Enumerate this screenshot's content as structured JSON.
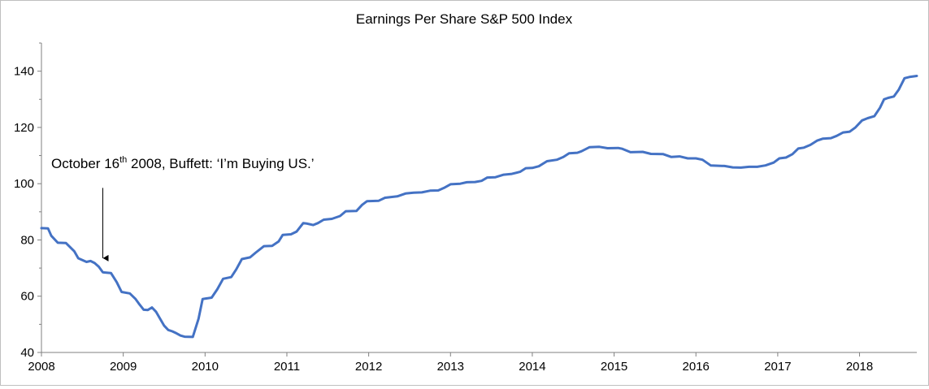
{
  "chart_data": {
    "type": "line",
    "title": "Earnings Per Share S&P 500 Index",
    "xlabel": "",
    "ylabel": "",
    "xlim": [
      2008.0,
      2018.7
    ],
    "ylim": [
      40,
      150
    ],
    "x_ticks": [
      "2008",
      "2009",
      "2010",
      "2011",
      "2012",
      "2013",
      "2014",
      "2015",
      "2016",
      "2017",
      "2018"
    ],
    "y_ticks": [
      "40",
      "60",
      "80",
      "100",
      "120",
      "140"
    ],
    "grid": false,
    "legend": "none",
    "line_color": "#4472C4",
    "series": [
      {
        "points": [
          [
            2008.0,
            84.2
          ],
          [
            2008.08,
            84.1
          ],
          [
            2008.12,
            81.5
          ],
          [
            2008.2,
            79.0
          ],
          [
            2008.3,
            78.9
          ],
          [
            2008.4,
            76.0
          ],
          [
            2008.45,
            73.5
          ],
          [
            2008.55,
            72.2
          ],
          [
            2008.6,
            72.5
          ],
          [
            2008.65,
            71.8
          ],
          [
            2008.7,
            70.5
          ],
          [
            2008.75,
            68.5
          ],
          [
            2008.85,
            68.2
          ],
          [
            2008.92,
            65.0
          ],
          [
            2008.98,
            61.5
          ],
          [
            2009.08,
            61.0
          ],
          [
            2009.15,
            59.0
          ],
          [
            2009.2,
            57.0
          ],
          [
            2009.25,
            55.2
          ],
          [
            2009.3,
            55.1
          ],
          [
            2009.35,
            56.0
          ],
          [
            2009.4,
            54.5
          ],
          [
            2009.45,
            52.0
          ],
          [
            2009.5,
            49.5
          ],
          [
            2009.55,
            48.0
          ],
          [
            2009.6,
            47.5
          ],
          [
            2009.65,
            46.8
          ],
          [
            2009.7,
            46.0
          ],
          [
            2009.75,
            45.6
          ],
          [
            2009.85,
            45.5
          ],
          [
            2009.92,
            52.0
          ],
          [
            2009.97,
            59.0
          ],
          [
            2010.08,
            59.5
          ],
          [
            2010.15,
            62.5
          ],
          [
            2010.22,
            66.2
          ],
          [
            2010.32,
            66.8
          ],
          [
            2010.38,
            69.5
          ],
          [
            2010.45,
            73.2
          ],
          [
            2010.55,
            73.8
          ],
          [
            2010.62,
            75.5
          ],
          [
            2010.72,
            77.8
          ],
          [
            2010.82,
            77.9
          ],
          [
            2010.9,
            79.5
          ],
          [
            2010.95,
            81.8
          ],
          [
            2011.05,
            82.0
          ],
          [
            2011.12,
            83.0
          ],
          [
            2011.2,
            86.0
          ],
          [
            2011.25,
            85.8
          ],
          [
            2011.32,
            85.3
          ],
          [
            2011.38,
            86.0
          ],
          [
            2011.45,
            87.2
          ],
          [
            2011.55,
            87.5
          ],
          [
            2011.65,
            88.5
          ],
          [
            2011.72,
            90.2
          ],
          [
            2011.85,
            90.3
          ],
          [
            2011.92,
            92.5
          ],
          [
            2011.98,
            93.8
          ],
          [
            2012.12,
            93.9
          ],
          [
            2012.2,
            95.0
          ],
          [
            2012.35,
            95.5
          ],
          [
            2012.45,
            96.5
          ],
          [
            2012.55,
            96.8
          ],
          [
            2012.65,
            96.9
          ],
          [
            2012.75,
            97.5
          ],
          [
            2012.85,
            97.6
          ],
          [
            2012.92,
            98.5
          ],
          [
            2013.0,
            99.8
          ],
          [
            2013.12,
            100.0
          ],
          [
            2013.2,
            100.5
          ],
          [
            2013.3,
            100.6
          ],
          [
            2013.38,
            101.0
          ],
          [
            2013.45,
            102.2
          ],
          [
            2013.55,
            102.3
          ],
          [
            2013.65,
            103.2
          ],
          [
            2013.75,
            103.5
          ],
          [
            2013.85,
            104.2
          ],
          [
            2013.92,
            105.5
          ],
          [
            2014.0,
            105.6
          ],
          [
            2014.08,
            106.2
          ],
          [
            2014.18,
            108.0
          ],
          [
            2014.3,
            108.5
          ],
          [
            2014.38,
            109.5
          ],
          [
            2014.45,
            110.8
          ],
          [
            2014.55,
            111.0
          ],
          [
            2014.6,
            111.5
          ],
          [
            2014.7,
            113.0
          ],
          [
            2014.82,
            113.1
          ],
          [
            2014.92,
            112.6
          ],
          [
            2015.05,
            112.7
          ],
          [
            2015.1,
            112.4
          ],
          [
            2015.2,
            111.2
          ],
          [
            2015.35,
            111.3
          ],
          [
            2015.45,
            110.6
          ],
          [
            2015.6,
            110.5
          ],
          [
            2015.7,
            109.5
          ],
          [
            2015.8,
            109.7
          ],
          [
            2015.9,
            109.0
          ],
          [
            2016.0,
            109.0
          ],
          [
            2016.08,
            108.5
          ],
          [
            2016.18,
            106.5
          ],
          [
            2016.35,
            106.3
          ],
          [
            2016.45,
            105.8
          ],
          [
            2016.55,
            105.7
          ],
          [
            2016.65,
            106.0
          ],
          [
            2016.75,
            106.0
          ],
          [
            2016.85,
            106.5
          ],
          [
            2016.95,
            107.5
          ],
          [
            2017.02,
            109.0
          ],
          [
            2017.1,
            109.3
          ],
          [
            2017.18,
            110.5
          ],
          [
            2017.25,
            112.5
          ],
          [
            2017.32,
            112.8
          ],
          [
            2017.4,
            113.8
          ],
          [
            2017.48,
            115.3
          ],
          [
            2017.55,
            116.0
          ],
          [
            2017.65,
            116.2
          ],
          [
            2017.72,
            117.0
          ],
          [
            2017.8,
            118.2
          ],
          [
            2017.88,
            118.5
          ],
          [
            2017.95,
            120.0
          ],
          [
            2018.03,
            122.5
          ],
          [
            2018.1,
            123.3
          ],
          [
            2018.18,
            124.0
          ],
          [
            2018.25,
            127.0
          ],
          [
            2018.3,
            130.0
          ],
          [
            2018.35,
            130.5
          ],
          [
            2018.42,
            131.0
          ],
          [
            2018.48,
            133.5
          ],
          [
            2018.55,
            137.5
          ],
          [
            2018.62,
            138.0
          ],
          [
            2018.7,
            138.3
          ]
        ]
      }
    ],
    "annotation": {
      "text_before": "October 16",
      "superscript": "th",
      "text_after": " 2008, Buffett: ‘I’m Buying US.’",
      "arrow_x": 2008.75,
      "arrow_y_to": 71.5,
      "arrow_y_from": 98.5
    }
  }
}
